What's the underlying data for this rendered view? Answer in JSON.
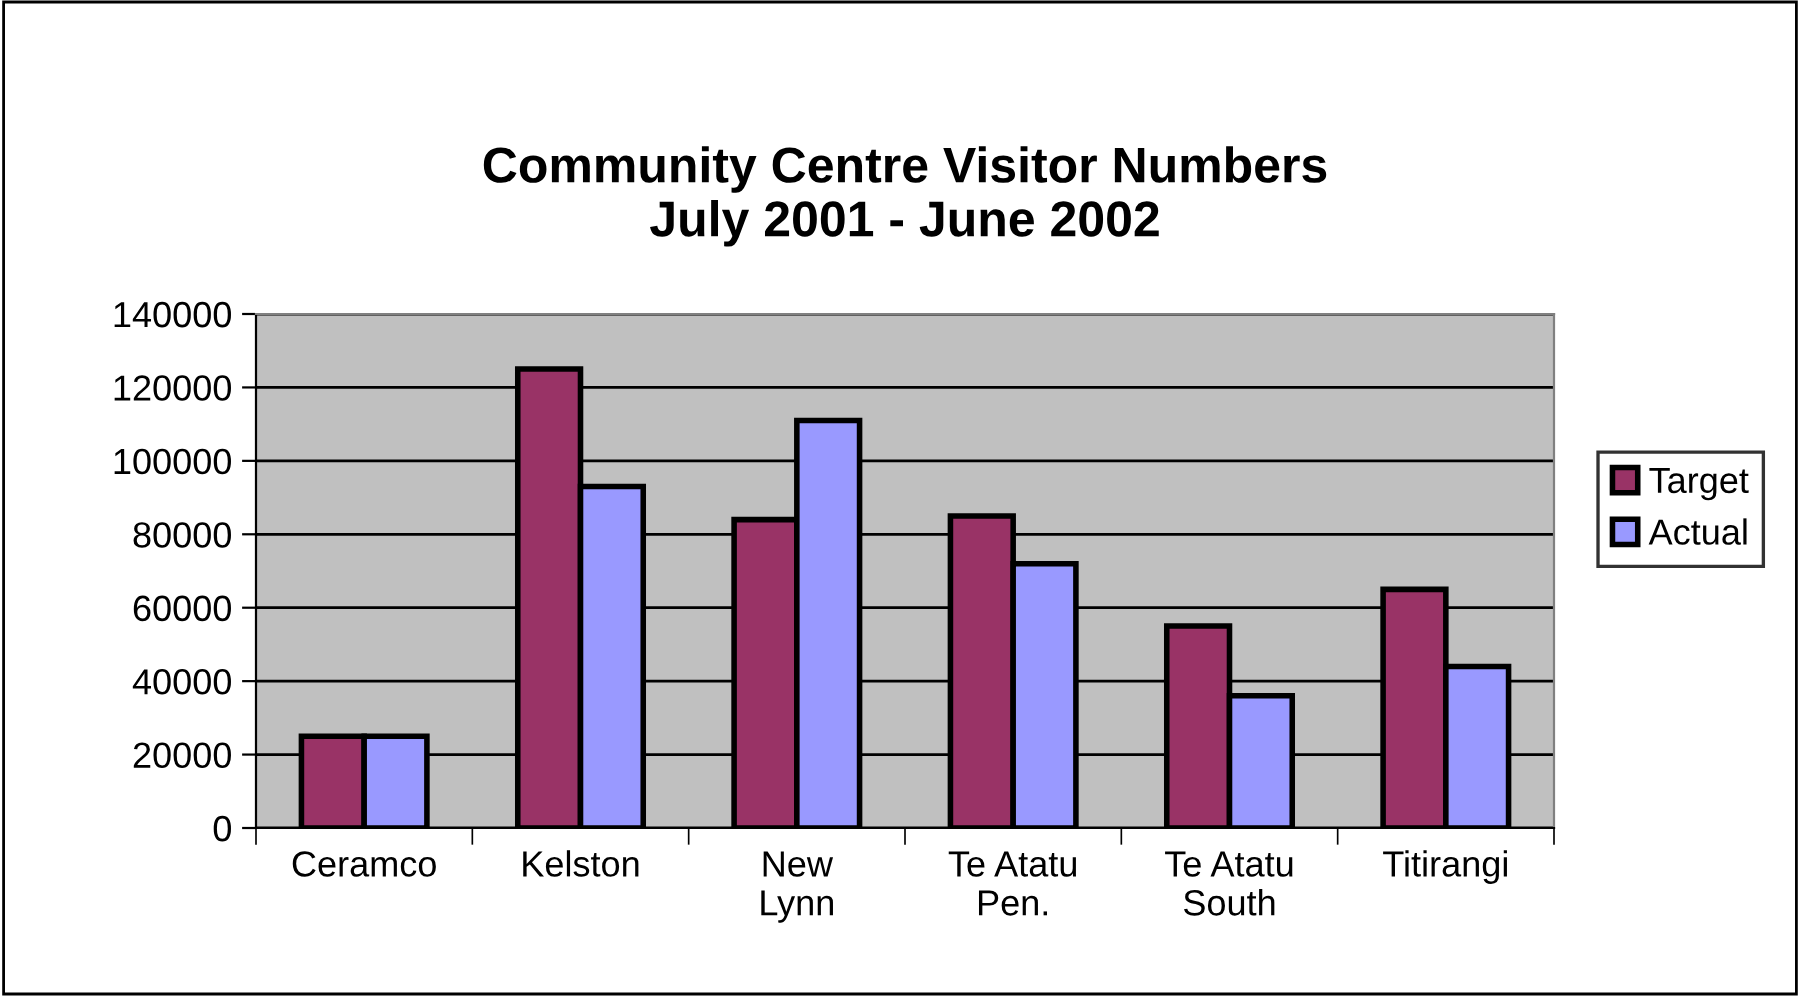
{
  "chart_data": {
    "type": "bar",
    "title": "Community Centre Visitor Numbers\nJuly 2001 - June 2002",
    "categories": [
      "Ceramco",
      "Kelston",
      "New\nLynn",
      "Te Atatu\nPen.",
      "Te Atatu\nSouth",
      "Titirangi"
    ],
    "series": [
      {
        "name": "Target",
        "color": "#993366",
        "values": [
          25000,
          125000,
          84000,
          85000,
          55000,
          65000
        ]
      },
      {
        "name": "Actual",
        "color": "#9999ff",
        "values": [
          25000,
          93000,
          111000,
          72000,
          36000,
          44000
        ]
      }
    ],
    "ylim": [
      0,
      140000
    ],
    "yticks": [
      0,
      20000,
      40000,
      60000,
      80000,
      100000,
      120000,
      140000
    ],
    "grid": "y",
    "legend": "right"
  }
}
